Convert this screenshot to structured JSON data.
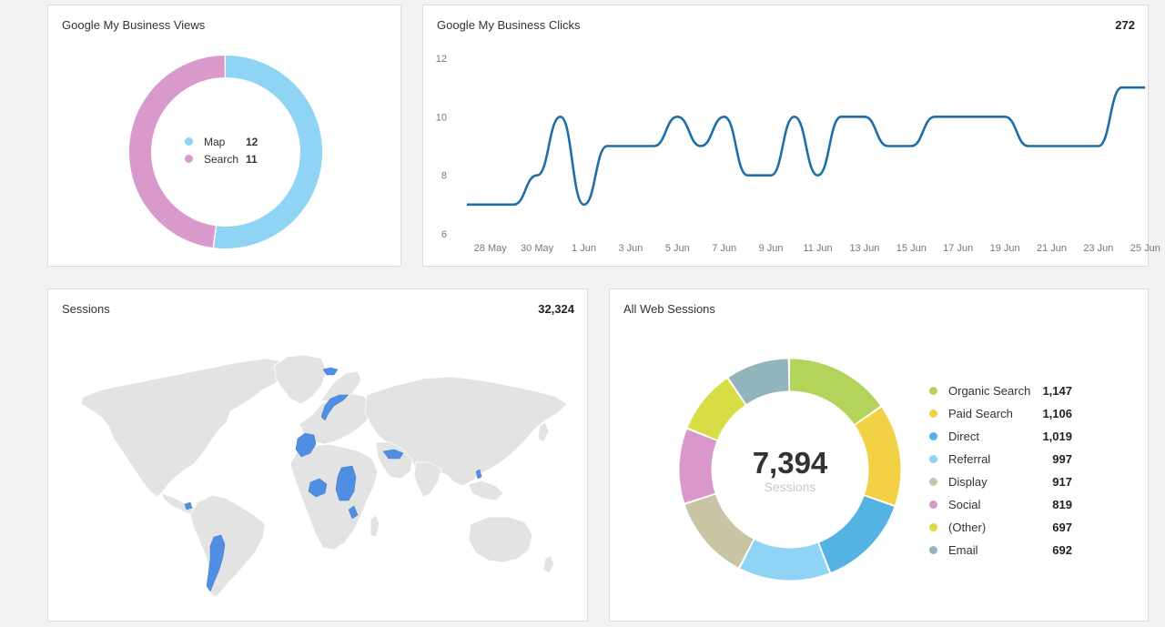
{
  "cards": {
    "views": {
      "title": "Google My Business Views",
      "legend": [
        {
          "label": "Map",
          "value": "12",
          "color": "#8fd3f5"
        },
        {
          "label": "Search",
          "value": "11",
          "color": "#d99acb"
        }
      ]
    },
    "clicks": {
      "title": "Google My Business Clicks",
      "total": "272"
    },
    "sessions": {
      "title": "Sessions",
      "total": "32,324"
    },
    "web_sessions": {
      "title": "All Web Sessions",
      "center_value": "7,394",
      "center_label": "Sessions",
      "legend": [
        {
          "label": "Organic Search",
          "value": "1,147",
          "color": "#b3d35b"
        },
        {
          "label": "Paid Search",
          "value": "1,106",
          "color": "#f2d244"
        },
        {
          "label": "Direct",
          "value": "1,019",
          "color": "#55b3e3"
        },
        {
          "label": "Referral",
          "value": "997",
          "color": "#8fd3f5"
        },
        {
          "label": "Display",
          "value": "917",
          "color": "#c9c4a4"
        },
        {
          "label": "Social",
          "value": "819",
          "color": "#da97cb"
        },
        {
          "label": "(Other)",
          "value": "697",
          "color": "#d7dd45"
        },
        {
          "label": "Email",
          "value": "692",
          "color": "#92b5bd"
        }
      ]
    }
  },
  "chart_data": [
    {
      "type": "pie",
      "title": "Google My Business Views",
      "categories": [
        "Map",
        "Search"
      ],
      "values": [
        12,
        11
      ],
      "colors": [
        "#8fd3f5",
        "#d99acb"
      ]
    },
    {
      "type": "line",
      "title": "Google My Business Clicks",
      "x": [
        "27 May",
        "28 May",
        "29 May",
        "30 May",
        "31 May",
        "1 Jun",
        "2 Jun",
        "3 Jun",
        "4 Jun",
        "5 Jun",
        "6 Jun",
        "7 Jun",
        "8 Jun",
        "9 Jun",
        "10 Jun",
        "11 Jun",
        "12 Jun",
        "13 Jun",
        "14 Jun",
        "15 Jun",
        "16 Jun",
        "17 Jun",
        "18 Jun",
        "19 Jun",
        "20 Jun",
        "21 Jun",
        "22 Jun",
        "23 Jun",
        "24 Jun",
        "25 Jun"
      ],
      "x_ticks": [
        "28 May",
        "30 May",
        "1 Jun",
        "3 Jun",
        "5 Jun",
        "7 Jun",
        "9 Jun",
        "11 Jun",
        "13 Jun",
        "15 Jun",
        "17 Jun",
        "19 Jun",
        "21 Jun",
        "23 Jun",
        "25 Jun"
      ],
      "series": [
        {
          "values": [
            7,
            7,
            7,
            8,
            10,
            7,
            9,
            9,
            9,
            10,
            9,
            10,
            8,
            8,
            10,
            8,
            10,
            10,
            9,
            9,
            10,
            10,
            10,
            10,
            9,
            9,
            9,
            9,
            11,
            11
          ],
          "color": "#1f6ea5"
        }
      ],
      "y_ticks": [
        6,
        8,
        10,
        12
      ],
      "ylim": [
        6,
        12
      ],
      "grid": false
    },
    {
      "type": "pie",
      "title": "All Web Sessions",
      "categories": [
        "Organic Search",
        "Paid Search",
        "Direct",
        "Referral",
        "Display",
        "Social",
        "(Other)",
        "Email"
      ],
      "values": [
        1147,
        1106,
        1019,
        997,
        917,
        819,
        697,
        692
      ]
    }
  ]
}
